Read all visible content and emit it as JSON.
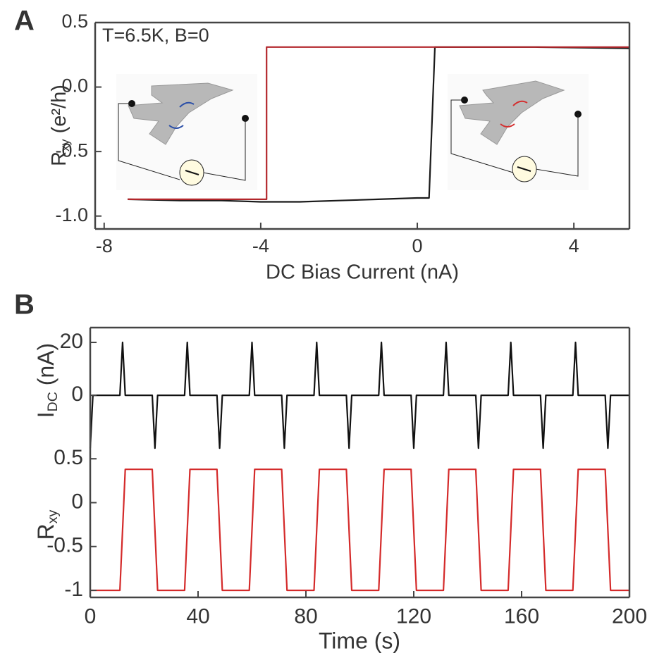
{
  "chart_data": [
    {
      "type": "line",
      "panel_label": "A",
      "annotation": "T=6.5K, B=0",
      "xlabel": "DC Bias Current (nA)",
      "ylabel": {
        "main": "R",
        "sub": "xy",
        "rest": " (e²/h)"
      },
      "xlim": [
        -8.23,
        5.42
      ],
      "ylim": [
        -1.1,
        0.5
      ],
      "xticks": [
        -8,
        -4,
        0,
        4
      ],
      "yticks": [
        {
          "value": -1.0,
          "label": "-1.0"
        },
        {
          "value": -0.5,
          "label": "-0.5"
        },
        {
          "value": 0,
          "label": "0.0"
        },
        {
          "value": 0.5,
          "label": "0.5"
        }
      ],
      "series": [
        {
          "color": "#1a1a1a",
          "x": [
            -7.4,
            -6,
            -5,
            -4,
            -3,
            -2,
            -1,
            0,
            0.3,
            0.45,
            1,
            3,
            5.42
          ],
          "values": [
            -0.87,
            -0.88,
            -0.88,
            -0.89,
            -0.89,
            -0.88,
            -0.87,
            -0.86,
            -0.86,
            0.31,
            0.31,
            0.31,
            0.3
          ]
        },
        {
          "color": "#b3262b",
          "x": [
            -7.4,
            -6,
            -5,
            -4.2,
            -3.85,
            -3.85,
            -3,
            0,
            2,
            4,
            5.42
          ],
          "values": [
            -0.87,
            -0.87,
            -0.87,
            -0.87,
            -0.87,
            0.31,
            0.31,
            0.31,
            0.31,
            0.31,
            0.31
          ]
        }
      ]
    },
    {
      "type": "line",
      "panel_label": "B",
      "ylabel": {
        "main": "I",
        "sub": "DC",
        "rest": " (nA)"
      },
      "xlim": [
        0,
        200
      ],
      "ylim": [
        -21,
        25.6
      ],
      "yticks": [
        0,
        20
      ],
      "series": [
        {
          "color": "#111111",
          "x": [
            0,
            1,
            11,
            12,
            13,
            23,
            24,
            25,
            35,
            36,
            37,
            47,
            48,
            49,
            59,
            60,
            61,
            71,
            72,
            73,
            83,
            84,
            85,
            95,
            96,
            97,
            107,
            108,
            109,
            119,
            120,
            121,
            131,
            132,
            133,
            143,
            144,
            145,
            155,
            156,
            157,
            167,
            168,
            169,
            179,
            180,
            181,
            191,
            192,
            193,
            200
          ],
          "values": [
            -20,
            0,
            0,
            20,
            0,
            0,
            -20,
            0,
            0,
            20,
            0,
            0,
            -20,
            0,
            0,
            20,
            0,
            0,
            -20,
            0,
            0,
            20,
            0,
            0,
            -20,
            0,
            0,
            20,
            0,
            0,
            -20,
            0,
            0,
            20,
            0,
            0,
            -20,
            0,
            0,
            20,
            0,
            0,
            -20,
            0,
            0,
            20,
            0,
            0,
            -20,
            0,
            0
          ]
        }
      ]
    },
    {
      "type": "line",
      "xlabel": "Time (s)",
      "ylabel": {
        "main": "R",
        "sub": "xy"
      },
      "xlim": [
        0,
        200
      ],
      "ylim": [
        -1.08,
        0.59
      ],
      "xticks": [
        0,
        40,
        80,
        120,
        160,
        200
      ],
      "yticks": [
        -1,
        -0.5,
        0,
        0.5
      ],
      "series": [
        {
          "color": "#d42a2a",
          "x": [
            0,
            11,
            13,
            23,
            25,
            35,
            37,
            47,
            49,
            59,
            61,
            71,
            73,
            83,
            85,
            95,
            97,
            107,
            109,
            119,
            121,
            131,
            133,
            143,
            145,
            155,
            157,
            167,
            169,
            179,
            181,
            191,
            193,
            200
          ],
          "values": [
            -1,
            -1,
            0.38,
            0.38,
            -1,
            -1,
            0.38,
            0.38,
            -1,
            -1,
            0.38,
            0.38,
            -1,
            -1,
            0.38,
            0.38,
            -1,
            -1,
            0.38,
            0.38,
            -1,
            -1,
            0.38,
            0.38,
            -1,
            -1,
            0.38,
            0.38,
            -1,
            -1,
            0.38,
            0.38,
            -1,
            -1
          ]
        }
      ]
    }
  ]
}
